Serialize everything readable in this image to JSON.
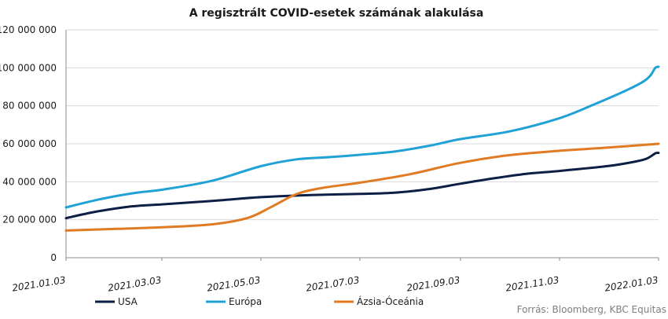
{
  "chart_data": {
    "type": "line",
    "title": "A regisztrált COVID-esetek számának alakulása",
    "xlabel": "",
    "ylabel": "",
    "x_range": [
      "2021.01.03",
      "2022.01.03"
    ],
    "x_ticks": [
      "2021.01.03",
      "2021.03.03",
      "2021.05.03",
      "2021.07.03",
      "2021.09.03",
      "2021.11.03",
      "2022.01.03"
    ],
    "ylim": [
      0,
      120000000
    ],
    "y_ticks": [
      0,
      20000000,
      40000000,
      60000000,
      80000000,
      100000000,
      120000000
    ],
    "y_tick_labels": [
      "0",
      "20 000 000",
      "40 000 000",
      "60 000 000",
      "80 000 000",
      "100 000 000",
      "120 000 000"
    ],
    "grid": "horizontal",
    "legend_position": "bottom",
    "source": "Forrás: Bloomberg, KBC Equitas",
    "series": [
      {
        "name": "USA",
        "color": "#0d1f45",
        "points": [
          [
            "2021.01.03",
            20800000
          ],
          [
            "2021.01.20",
            24000000
          ],
          [
            "2021.02.10",
            26800000
          ],
          [
            "2021.03.03",
            28100000
          ],
          [
            "2021.04.03",
            29900000
          ],
          [
            "2021.05.03",
            31900000
          ],
          [
            "2021.06.03",
            33000000
          ],
          [
            "2021.07.03",
            33600000
          ],
          [
            "2021.07.25",
            34300000
          ],
          [
            "2021.08.15",
            36200000
          ],
          [
            "2021.09.03",
            39000000
          ],
          [
            "2021.09.25",
            42000000
          ],
          [
            "2021.10.15",
            44300000
          ],
          [
            "2021.11.03",
            45700000
          ],
          [
            "2021.12.03",
            48300000
          ],
          [
            "2021.12.20",
            50700000
          ],
          [
            "2021.12.27",
            52300000
          ],
          [
            "2022.01.01",
            55000000
          ],
          [
            "2022.01.03",
            55200000
          ]
        ]
      },
      {
        "name": "Európa",
        "color": "#21a2d6",
        "points": [
          [
            "2021.01.03",
            26500000
          ],
          [
            "2021.01.25",
            31000000
          ],
          [
            "2021.02.15",
            34200000
          ],
          [
            "2021.03.03",
            35800000
          ],
          [
            "2021.04.03",
            40500000
          ],
          [
            "2021.05.03",
            48200000
          ],
          [
            "2021.05.25",
            51800000
          ],
          [
            "2021.06.15",
            53000000
          ],
          [
            "2021.07.03",
            54200000
          ],
          [
            "2021.07.25",
            56000000
          ],
          [
            "2021.08.15",
            59000000
          ],
          [
            "2021.09.03",
            62500000
          ],
          [
            "2021.10.03",
            66500000
          ],
          [
            "2021.11.03",
            73500000
          ],
          [
            "2021.11.25",
            81000000
          ],
          [
            "2021.12.15",
            88500000
          ],
          [
            "2021.12.25",
            93000000
          ],
          [
            "2021.12.29",
            96000000
          ],
          [
            "2022.01.01",
            100000000
          ],
          [
            "2022.01.03",
            100600000
          ]
        ]
      },
      {
        "name": "Ázsia-Óceánia",
        "color": "#e07b23",
        "points": [
          [
            "2021.01.03",
            14300000
          ],
          [
            "2021.02.03",
            15200000
          ],
          [
            "2021.03.03",
            16000000
          ],
          [
            "2021.04.03",
            17600000
          ],
          [
            "2021.04.25",
            21000000
          ],
          [
            "2021.05.10",
            27000000
          ],
          [
            "2021.05.25",
            33500000
          ],
          [
            "2021.06.10",
            36800000
          ],
          [
            "2021.07.03",
            39500000
          ],
          [
            "2021.08.03",
            44000000
          ],
          [
            "2021.09.03",
            50000000
          ],
          [
            "2021.10.03",
            54000000
          ],
          [
            "2021.11.03",
            56300000
          ],
          [
            "2021.12.03",
            58000000
          ],
          [
            "2022.01.03",
            60000000
          ]
        ]
      }
    ]
  }
}
